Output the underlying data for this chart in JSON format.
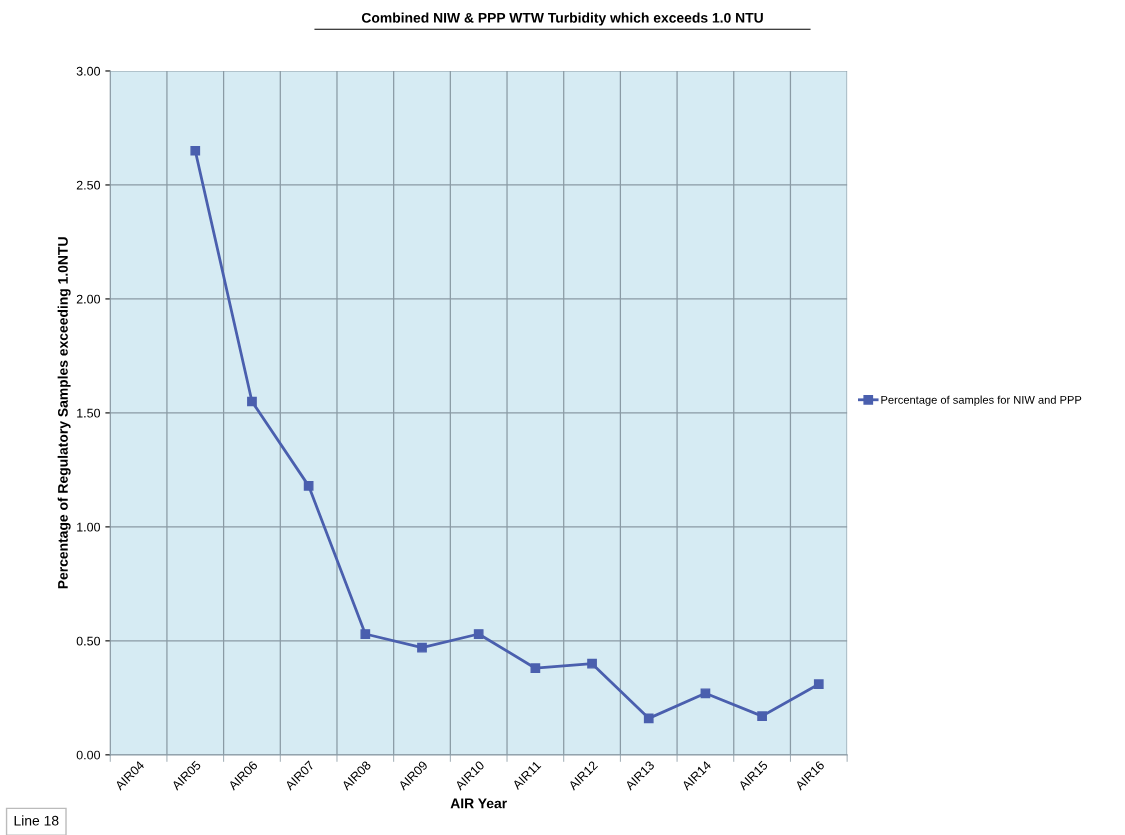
{
  "chart_data": {
    "type": "line",
    "title": "Combined NIW & PPP WTW Turbidity which exceeds 1.0 NTU",
    "xlabel": "AIR Year",
    "ylabel": "Percentage of Regulatory Samples exceeding 1.0NTU",
    "categories": [
      "AIR04",
      "AIR05",
      "AIR06",
      "AIR07",
      "AIR08",
      "AIR09",
      "AIR10",
      "AIR11",
      "AIR12",
      "AIR13",
      "AIR14",
      "AIR15",
      "AIR16"
    ],
    "series": [
      {
        "name": "Percentage of samples for NIW and PPP",
        "color": "#4a5fae",
        "values": [
          null,
          2.65,
          1.55,
          1.18,
          0.53,
          0.47,
          0.53,
          0.38,
          0.4,
          0.16,
          0.27,
          0.17,
          0.31
        ]
      }
    ],
    "ylim": [
      0,
      3
    ],
    "yticks": [
      {
        "value": 0,
        "label": "0.00"
      },
      {
        "value": 0.5,
        "label": "0.50"
      },
      {
        "value": 1,
        "label": "1.00"
      },
      {
        "value": 1.5,
        "label": "1.50"
      },
      {
        "value": 2,
        "label": "2.00"
      },
      {
        "value": 2.5,
        "label": "2.50"
      },
      {
        "value": 3,
        "label": "3.00"
      }
    ],
    "grid": true,
    "legend": "right",
    "marker": "square",
    "line_style": "solid",
    "annotations": [
      "Line 18"
    ]
  }
}
